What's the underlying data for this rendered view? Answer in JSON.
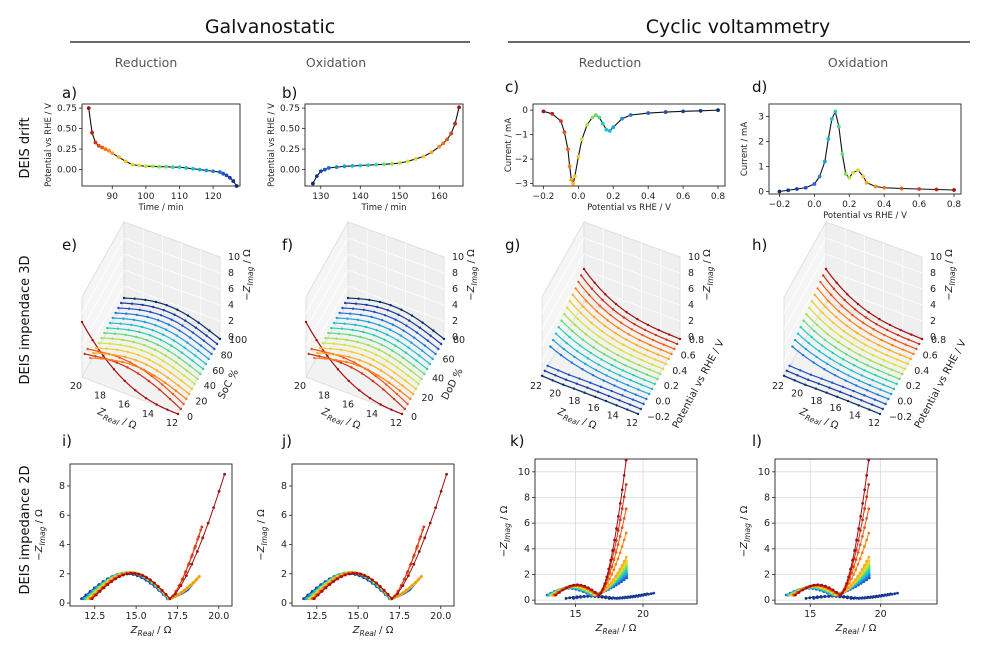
{
  "headers": {
    "galvanostatic": "Galvanostatic",
    "cyclic_voltammetry": "Cyclic voltammetry",
    "columns": [
      "Reduction",
      "Oxidation",
      "Reduction",
      "Oxidation"
    ],
    "rows": [
      "DEIS drift",
      "DEIS impendace 3D",
      "DEIS impedance 2D"
    ]
  },
  "colors": {
    "rainbow": [
      "#08306b",
      "#1f3fbf",
      "#1f78d8",
      "#19b5e0",
      "#22d3b0",
      "#7fe05a",
      "#d8e230",
      "#ffbf1f",
      "#ff7f0e",
      "#e8401a",
      "#a01010"
    ]
  },
  "chart_data": [
    {
      "id": "a",
      "panel_label": "a)",
      "type": "line",
      "xlabel": "Time / min",
      "ylabel": "Potential vs RHE / V",
      "xlim": [
        81,
        128
      ],
      "ylim": [
        -0.2,
        0.8
      ],
      "xticks": [
        90,
        100,
        110,
        120
      ],
      "yticks": [
        0.0,
        0.25,
        0.5,
        0.75
      ],
      "xtick_labels": [
        "90",
        "100",
        "110",
        "120"
      ],
      "ytick_labels": [
        "0.00",
        "0.25",
        "0.50",
        "0.75"
      ],
      "x": [
        83,
        84,
        85,
        86,
        87,
        88,
        89,
        90,
        92,
        94,
        96,
        98,
        100,
        102,
        104,
        106,
        108,
        110,
        112,
        114,
        116,
        118,
        120,
        122,
        123,
        124,
        125,
        126,
        127
      ],
      "y": [
        0.75,
        0.45,
        0.33,
        0.29,
        0.27,
        0.25,
        0.23,
        0.2,
        0.15,
        0.1,
        0.06,
        0.05,
        0.04,
        0.04,
        0.035,
        0.035,
        0.03,
        0.03,
        0.02,
        0.01,
        0.0,
        -0.01,
        -0.02,
        -0.03,
        -0.05,
        -0.07,
        -0.1,
        -0.14,
        -0.2
      ]
    },
    {
      "id": "b",
      "panel_label": "b)",
      "type": "line",
      "xlabel": "Time / min",
      "ylabel": "Potential vs RHE / V",
      "xlim": [
        126,
        166
      ],
      "ylim": [
        -0.2,
        0.8
      ],
      "xticks": [
        130,
        140,
        150,
        160
      ],
      "yticks": [
        0.0,
        0.25,
        0.5,
        0.75
      ],
      "xtick_labels": [
        "130",
        "140",
        "150",
        "160"
      ],
      "ytick_labels": [
        "0.00",
        "0.25",
        "0.50",
        "0.75"
      ],
      "x": [
        128,
        129,
        130,
        131,
        132,
        134,
        136,
        138,
        140,
        142,
        144,
        146,
        148,
        150,
        152,
        154,
        156,
        158,
        160,
        161,
        162,
        163,
        164,
        165
      ],
      "y": [
        -0.17,
        -0.08,
        -0.02,
        0.0,
        0.02,
        0.03,
        0.04,
        0.045,
        0.05,
        0.055,
        0.06,
        0.065,
        0.07,
        0.08,
        0.1,
        0.13,
        0.16,
        0.21,
        0.28,
        0.32,
        0.37,
        0.44,
        0.56,
        0.76
      ]
    },
    {
      "id": "c",
      "panel_label": "c)",
      "type": "line",
      "xlabel": "Potential vs RHE / V",
      "ylabel": "Current / mA",
      "xlim": [
        -0.26,
        0.84
      ],
      "ylim": [
        -3.1,
        0.25
      ],
      "xticks": [
        -0.2,
        0.0,
        0.2,
        0.4,
        0.6,
        0.8
      ],
      "yticks": [
        -3,
        -2,
        -1,
        0
      ],
      "xtick_labels": [
        "−0.2",
        "0.0",
        "0.2",
        "0.4",
        "0.6",
        "0.8"
      ],
      "ytick_labels": [
        "−3",
        "−2",
        "−1",
        "0"
      ],
      "x": [
        -0.2,
        -0.15,
        -0.1,
        -0.08,
        -0.06,
        -0.05,
        -0.04,
        -0.03,
        -0.02,
        0.0,
        0.02,
        0.05,
        0.08,
        0.1,
        0.12,
        0.14,
        0.16,
        0.18,
        0.2,
        0.25,
        0.3,
        0.4,
        0.5,
        0.6,
        0.7,
        0.8
      ],
      "y": [
        -0.05,
        -0.15,
        -0.45,
        -0.9,
        -1.6,
        -2.3,
        -2.85,
        -3.0,
        -2.7,
        -1.9,
        -1.2,
        -0.6,
        -0.3,
        -0.2,
        -0.3,
        -0.55,
        -0.8,
        -0.85,
        -0.7,
        -0.35,
        -0.2,
        -0.12,
        -0.08,
        -0.05,
        -0.03,
        0.0
      ]
    },
    {
      "id": "d",
      "panel_label": "d)",
      "type": "line",
      "xlabel": "Potential vs RHE / V",
      "ylabel": "Current / mA",
      "xlim": [
        -0.26,
        0.84
      ],
      "ylim": [
        -0.1,
        3.5
      ],
      "xticks": [
        -0.2,
        0.0,
        0.2,
        0.4,
        0.6,
        0.8
      ],
      "yticks": [
        0,
        1,
        2,
        3
      ],
      "xtick_labels": [
        "−0.2",
        "0.0",
        "0.2",
        "0.4",
        "0.6",
        "0.8"
      ],
      "ytick_labels": [
        "0",
        "1",
        "2",
        "3"
      ],
      "x": [
        -0.2,
        -0.15,
        -0.1,
        -0.05,
        0.0,
        0.03,
        0.06,
        0.08,
        0.1,
        0.12,
        0.14,
        0.16,
        0.18,
        0.2,
        0.22,
        0.25,
        0.28,
        0.3,
        0.35,
        0.4,
        0.5,
        0.6,
        0.7,
        0.8
      ],
      "y": [
        0.0,
        0.05,
        0.1,
        0.15,
        0.3,
        0.6,
        1.2,
        2.1,
        2.9,
        3.2,
        2.6,
        1.5,
        0.7,
        0.55,
        0.75,
        0.85,
        0.6,
        0.35,
        0.2,
        0.15,
        0.12,
        0.1,
        0.08,
        0.06
      ]
    },
    {
      "id": "e",
      "panel_label": "e)",
      "type": "surface3d",
      "x_label": "Z_Real / Ω",
      "y_label": "SoC %",
      "z_label": "−Z_Imag / Ω",
      "x_ticks": [
        "20",
        "18",
        "16",
        "14",
        "12"
      ],
      "y_ticks": [
        "0",
        "20",
        "40",
        "60",
        "80",
        "100"
      ],
      "z_ticks": [
        "0",
        "2",
        "4",
        "6",
        "8",
        "10"
      ]
    },
    {
      "id": "f",
      "panel_label": "f)",
      "type": "surface3d",
      "x_label": "Z_Real / Ω",
      "y_label": "DoD %",
      "z_label": "−Z_Imag / Ω",
      "x_ticks": [
        "20",
        "18",
        "16",
        "14",
        "12"
      ],
      "y_ticks": [
        "0",
        "20",
        "40",
        "60",
        "80"
      ],
      "z_ticks": [
        "0",
        "2",
        "4",
        "6",
        "8",
        "10"
      ]
    },
    {
      "id": "g",
      "panel_label": "g)",
      "type": "surface3d",
      "x_label": "Z_Real / Ω",
      "y_label": "Potential vs RHE / V",
      "z_label": "−Z_Imag / Ω",
      "x_ticks": [
        "22",
        "20",
        "18",
        "16",
        "14",
        "12"
      ],
      "y_ticks": [
        "−0.2",
        "0.0",
        "0.2",
        "0.4",
        "0.6",
        "0.8"
      ],
      "z_ticks": [
        "0",
        "2",
        "4",
        "6",
        "8",
        "10"
      ]
    },
    {
      "id": "h",
      "panel_label": "h)",
      "type": "surface3d",
      "x_label": "Z_Real / Ω",
      "y_label": "Potential vs RHE / V",
      "z_label": "−Z_Imag / Ω",
      "x_ticks": [
        "22",
        "20",
        "18",
        "16",
        "14",
        "12"
      ],
      "y_ticks": [
        "−0.2",
        "0.0",
        "0.2",
        "0.4",
        "0.6",
        "0.8"
      ],
      "z_ticks": [
        "0",
        "2",
        "4",
        "6",
        "8",
        "10"
      ]
    },
    {
      "id": "i",
      "panel_label": "i)",
      "type": "scatter",
      "xlabel": "Z_Real / Ω",
      "ylabel": "−Z_Imag / Ω",
      "xlim": [
        11.0,
        20.8
      ],
      "ylim": [
        -0.2,
        9.5
      ],
      "xticks": [
        12.5,
        15.0,
        17.5,
        20.0
      ],
      "yticks": [
        0,
        2,
        4,
        6,
        8
      ],
      "xtick_labels": [
        "12.5",
        "15.0",
        "17.5",
        "20.0"
      ],
      "ytick_labels": [
        "0",
        "2",
        "4",
        "6",
        "8"
      ],
      "grid": false
    },
    {
      "id": "j",
      "panel_label": "j)",
      "type": "scatter",
      "xlabel": "Z_Real / Ω",
      "ylabel": "−Z_Imag / Ω",
      "xlim": [
        11.0,
        20.8
      ],
      "ylim": [
        -0.2,
        9.5
      ],
      "xticks": [
        12.5,
        15.0,
        17.5,
        20.0
      ],
      "yticks": [
        0,
        2,
        4,
        6,
        8
      ],
      "xtick_labels": [
        "12.5",
        "15.0",
        "17.5",
        "20.0"
      ],
      "ytick_labels": [
        "0",
        "2",
        "4",
        "6",
        "8"
      ],
      "grid": false
    },
    {
      "id": "k",
      "panel_label": "k)",
      "type": "scatter",
      "xlabel": "Z_Real / Ω",
      "ylabel": "−Z_Imag / Ω",
      "xlim": [
        12.0,
        24.0
      ],
      "ylim": [
        -0.3,
        11.0
      ],
      "xticks": [
        15,
        20
      ],
      "yticks": [
        0,
        2,
        4,
        6,
        8,
        10
      ],
      "xtick_labels": [
        "15",
        "20"
      ],
      "ytick_labels": [
        "0",
        "2",
        "4",
        "6",
        "8",
        "10"
      ],
      "grid": true
    },
    {
      "id": "l",
      "panel_label": "l)",
      "type": "scatter",
      "xlabel": "Z_Real / Ω",
      "ylabel": "−Z_Imag / Ω",
      "xlim": [
        12.5,
        24.0
      ],
      "ylim": [
        -0.3,
        11.0
      ],
      "xticks": [
        15,
        20
      ],
      "yticks": [
        0,
        2,
        4,
        6,
        8,
        10
      ],
      "xtick_labels": [
        "15",
        "20"
      ],
      "ytick_labels": [
        "0",
        "2",
        "4",
        "6",
        "8",
        "10"
      ],
      "grid": true
    }
  ]
}
